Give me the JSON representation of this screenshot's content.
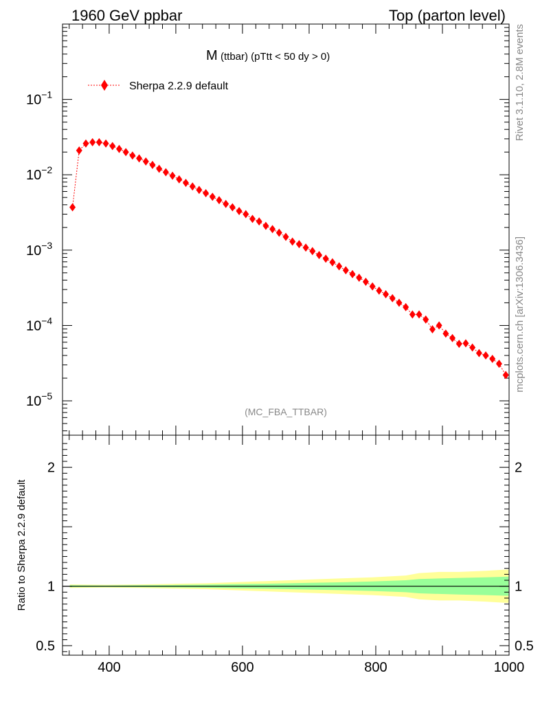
{
  "header": {
    "left": "1960 GeV ppbar",
    "right": "Top (parton level)"
  },
  "side_labels": {
    "rivet": "Rivet 3.1.10,  2.8M events",
    "mcplots": "mcplots.cern.ch [arXiv:1306.3436]"
  },
  "plot_title": {
    "main": "M",
    "sub": "(ttbar) (pTtt < 50 dy > 0)"
  },
  "watermark": "(MC_FBA_TTBAR)",
  "legend": {
    "label": "Sherpa 2.2.9 default"
  },
  "colors": {
    "series": "#ff0000",
    "band_outer": "#ffff99",
    "band_inner": "#99ff99"
  },
  "chart_data": [
    {
      "type": "scatter",
      "panel": "main",
      "yscale": "log",
      "xlim": [
        330,
        1000
      ],
      "ylim": [
        3.5e-06,
        1
      ],
      "y_ticks": [
        "10^-5",
        "10^-4",
        "10^-3",
        "10^-2",
        "10^-1"
      ],
      "series": [
        {
          "name": "Sherpa 2.2.9 default",
          "marker": "diamond",
          "line": "dotted",
          "x": [
            345,
            355,
            365,
            375,
            385,
            395,
            405,
            415,
            425,
            435,
            445,
            455,
            465,
            475,
            485,
            495,
            505,
            515,
            525,
            535,
            545,
            555,
            565,
            575,
            585,
            595,
            605,
            615,
            625,
            635,
            645,
            655,
            665,
            675,
            685,
            695,
            705,
            715,
            725,
            735,
            745,
            755,
            765,
            775,
            785,
            795,
            805,
            815,
            825,
            835,
            845,
            855,
            865,
            875,
            885,
            895,
            905,
            915,
            925,
            935,
            945,
            955,
            965,
            975,
            985,
            995
          ],
          "y": [
            0.0037,
            0.021,
            0.026,
            0.027,
            0.027,
            0.026,
            0.024,
            0.022,
            0.02,
            0.018,
            0.0165,
            0.015,
            0.0135,
            0.012,
            0.0108,
            0.0097,
            0.0087,
            0.0078,
            0.007,
            0.0063,
            0.0057,
            0.0051,
            0.0046,
            0.0041,
            0.0037,
            0.0033,
            0.003,
            0.0026,
            0.0024,
            0.0021,
            0.0019,
            0.0017,
            0.0015,
            0.0013,
            0.0012,
            0.00108,
            0.00097,
            0.00086,
            0.00077,
            0.00069,
            0.00061,
            0.00054,
            0.00048,
            0.00043,
            0.00038,
            0.00033,
            0.00029,
            0.00026,
            0.00023,
            0.0002,
            0.000175,
            0.00014,
            0.00014,
            0.00012,
            8.9e-05,
            0.0001,
            7.8e-05,
            6.8e-05,
            5.7e-05,
            5.8e-05,
            5.1e-05,
            4.3e-05,
            4e-05,
            3.6e-05,
            3.1e-05,
            2.2e-05
          ]
        }
      ]
    },
    {
      "type": "area",
      "panel": "ratio",
      "ylabel": "Ratio to Sherpa 2.2.9 default",
      "xlim": [
        330,
        1000
      ],
      "ylim": [
        0.42,
        2.27
      ],
      "x_ticks": [
        "400",
        "600",
        "800",
        "1000"
      ],
      "y_ticks": [
        "0.5",
        "1",
        "2"
      ],
      "reference_line": 1,
      "band_x": [
        345,
        395,
        445,
        495,
        545,
        595,
        645,
        695,
        745,
        795,
        845,
        865,
        895,
        925,
        965,
        995
      ],
      "outer_band": [
        0.015,
        0.012,
        0.015,
        0.02,
        0.025,
        0.035,
        0.045,
        0.055,
        0.065,
        0.075,
        0.09,
        0.11,
        0.12,
        0.12,
        0.13,
        0.14
      ],
      "inner_band": [
        0.008,
        0.006,
        0.008,
        0.01,
        0.013,
        0.018,
        0.022,
        0.028,
        0.033,
        0.04,
        0.05,
        0.06,
        0.065,
        0.07,
        0.075,
        0.08
      ]
    }
  ]
}
